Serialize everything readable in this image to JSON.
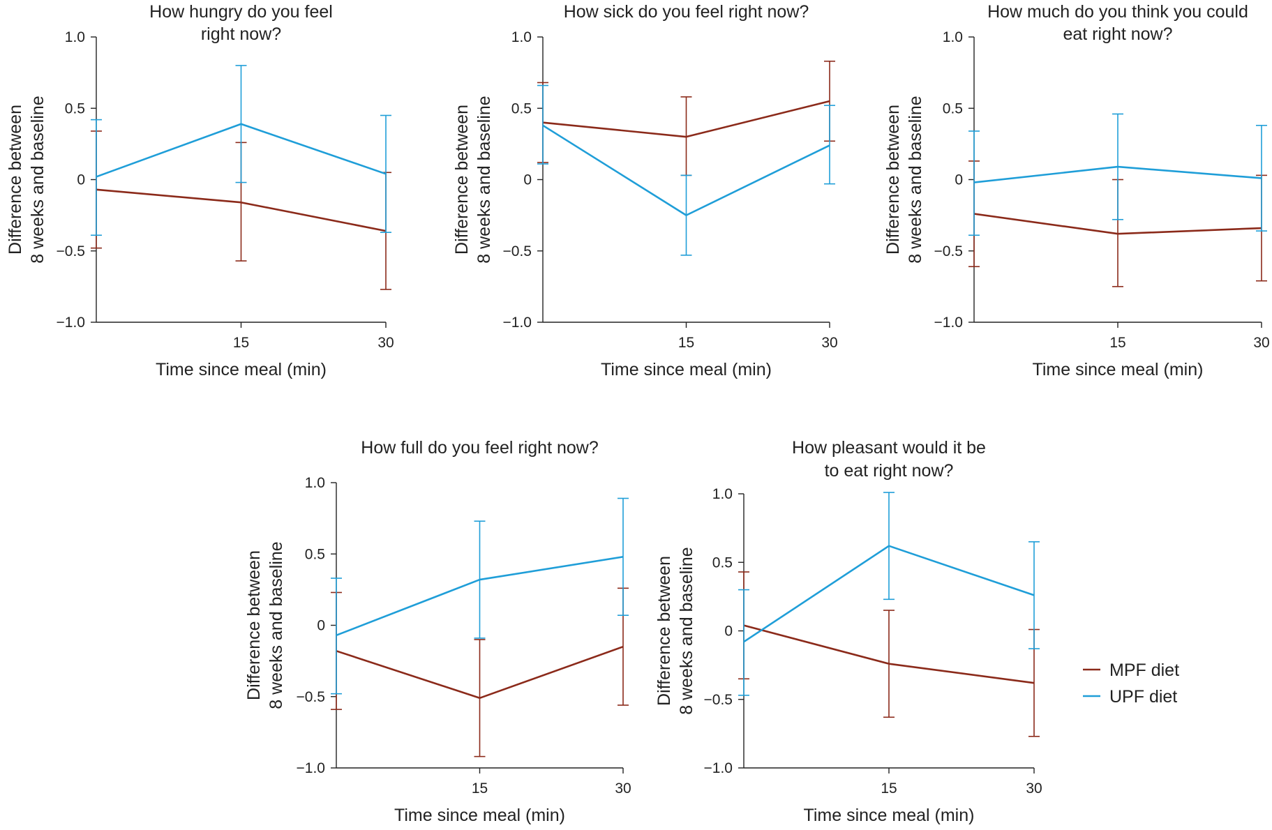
{
  "chart_data": [
    {
      "type": "line",
      "title_lines": [
        "How hungry do you feel",
        "right now?"
      ],
      "xlabel": "Time since meal (min)",
      "ylabel_lines": [
        "Difference between",
        "8 weeks and baseline"
      ],
      "x": [
        0,
        15,
        30
      ],
      "xticks": [
        "15",
        "30"
      ],
      "xlim": [
        0,
        30
      ],
      "ylim": [
        -1.0,
        1.0
      ],
      "yticks": [
        "1.0",
        "0.5",
        "0",
        "−0.5",
        "−1.0"
      ],
      "series": [
        {
          "name": "MPF diet",
          "values": [
            -0.07,
            -0.16,
            -0.36
          ],
          "err_low": [
            -0.48,
            -0.57,
            -0.77
          ],
          "err_high": [
            0.34,
            0.26,
            0.05
          ]
        },
        {
          "name": "UPF diet",
          "values": [
            0.02,
            0.39,
            0.04
          ],
          "err_low": [
            -0.39,
            -0.02,
            -0.37
          ],
          "err_high": [
            0.42,
            0.8,
            0.45
          ]
        }
      ]
    },
    {
      "type": "line",
      "title_lines": [
        "How sick do you feel right now?"
      ],
      "xlabel": "Time since meal (min)",
      "ylabel_lines": [
        "Difference between",
        "8 weeks and baseline"
      ],
      "x": [
        0,
        15,
        30
      ],
      "xticks": [
        "15",
        "30"
      ],
      "xlim": [
        0,
        30
      ],
      "ylim": [
        -1.0,
        1.0
      ],
      "yticks": [
        "1.0",
        "0.5",
        "0",
        "−0.5",
        "−1.0"
      ],
      "series": [
        {
          "name": "MPF diet",
          "values": [
            0.4,
            0.3,
            0.55
          ],
          "err_low": [
            0.12,
            0.03,
            0.27
          ],
          "err_high": [
            0.68,
            0.58,
            0.83
          ]
        },
        {
          "name": "UPF diet",
          "values": [
            0.38,
            -0.25,
            0.24
          ],
          "err_low": [
            0.11,
            -0.53,
            -0.03
          ],
          "err_high": [
            0.66,
            0.03,
            0.52
          ]
        }
      ]
    },
    {
      "type": "line",
      "title_lines": [
        "How much do you think you could",
        "eat right now?"
      ],
      "xlabel": "Time since meal (min)",
      "ylabel_lines": [
        "Difference between",
        "8 weeks and baseline"
      ],
      "x": [
        0,
        15,
        30
      ],
      "xticks": [
        "15",
        "30"
      ],
      "xlim": [
        0,
        30
      ],
      "ylim": [
        -1.0,
        1.0
      ],
      "yticks": [
        "1.0",
        "0.5",
        "0",
        "−0.5",
        "−1.0"
      ],
      "series": [
        {
          "name": "MPF diet",
          "values": [
            -0.24,
            -0.38,
            -0.34
          ],
          "err_low": [
            -0.61,
            -0.75,
            -0.71
          ],
          "err_high": [
            0.13,
            0.0,
            0.03
          ]
        },
        {
          "name": "UPF diet",
          "values": [
            -0.02,
            0.09,
            0.01
          ],
          "err_low": [
            -0.39,
            -0.28,
            -0.36
          ],
          "err_high": [
            0.34,
            0.46,
            0.38
          ]
        }
      ]
    },
    {
      "type": "line",
      "title_lines": [
        "How full do you feel right now?"
      ],
      "xlabel": "Time since meal (min)",
      "ylabel_lines": [
        "Difference between",
        "8 weeks and baseline"
      ],
      "x": [
        0,
        15,
        30
      ],
      "xticks": [
        "15",
        "30"
      ],
      "xlim": [
        0,
        30
      ],
      "ylim": [
        -1.0,
        1.0
      ],
      "yticks": [
        "1.0",
        "0.5",
        "0",
        "−0.5",
        "−1.0"
      ],
      "series": [
        {
          "name": "MPF diet",
          "values": [
            -0.18,
            -0.51,
            -0.15
          ],
          "err_low": [
            -0.59,
            -0.92,
            -0.56
          ],
          "err_high": [
            0.23,
            -0.1,
            0.26
          ]
        },
        {
          "name": "UPF diet",
          "values": [
            -0.07,
            0.32,
            0.48
          ],
          "err_low": [
            -0.48,
            -0.09,
            0.07
          ],
          "err_high": [
            0.33,
            0.73,
            0.89
          ]
        }
      ]
    },
    {
      "type": "line",
      "title_lines": [
        "How pleasant would it be",
        "to eat right now?"
      ],
      "xlabel": "Time since meal (min)",
      "ylabel_lines": [
        "Difference between",
        "8 weeks and baseline"
      ],
      "x": [
        0,
        15,
        30
      ],
      "xticks": [
        "15",
        "30"
      ],
      "xlim": [
        0,
        30
      ],
      "ylim": [
        -1.0,
        1.0
      ],
      "yticks": [
        "1.0",
        "0.5",
        "0",
        "−0.5",
        "−1.0"
      ],
      "series": [
        {
          "name": "MPF diet",
          "values": [
            0.04,
            -0.24,
            -0.38
          ],
          "err_low": [
            -0.35,
            -0.63,
            -0.77
          ],
          "err_high": [
            0.43,
            0.15,
            0.01
          ]
        },
        {
          "name": "UPF diet",
          "values": [
            -0.08,
            0.62,
            0.26
          ],
          "err_low": [
            -0.47,
            0.23,
            -0.13
          ],
          "err_high": [
            0.3,
            1.01,
            0.65
          ]
        }
      ]
    }
  ],
  "legend": [
    {
      "label": "MPF diet",
      "color": "#8b2a1a"
    },
    {
      "label": "UPF diet",
      "color": "#1f9ed8"
    }
  ],
  "colors": {
    "MPF diet": "#8b2a1a",
    "UPF diet": "#1f9ed8",
    "axis": "#222222"
  }
}
